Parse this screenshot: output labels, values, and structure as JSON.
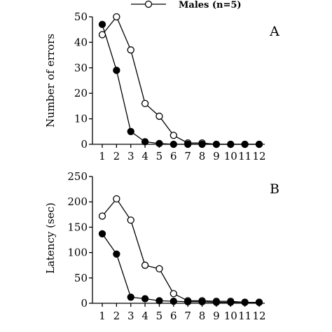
{
  "legend": {
    "items": [
      {
        "name": "Males (n=5)",
        "marker": "open-circle"
      }
    ]
  },
  "colors": {
    "line": "#000000",
    "open_fill": "#ffffff",
    "filled_fill": "#000000"
  },
  "chart_data": [
    {
      "type": "line",
      "panel_label": "A",
      "ylabel": "Number of errors",
      "xlabel": "",
      "x": [
        1,
        2,
        3,
        4,
        5,
        6,
        7,
        8,
        9,
        10,
        11,
        12
      ],
      "xticks": [
        "1",
        "2",
        "3",
        "4",
        "5",
        "6",
        "7",
        "8",
        "9",
        "10",
        "11",
        "12"
      ],
      "ylim": [
        0,
        50
      ],
      "yticks": [
        0,
        10,
        20,
        30,
        40,
        50
      ],
      "series": [
        {
          "name": "",
          "marker": "filled-circle",
          "values": [
            47,
            29,
            5,
            1,
            0.3,
            0,
            0,
            0,
            0,
            0,
            0,
            0
          ]
        },
        {
          "name": "Males (n=5)",
          "marker": "open-circle",
          "values": [
            43,
            50,
            37,
            16,
            11,
            3.5,
            0.5,
            0.5,
            0,
            0,
            0,
            0
          ]
        }
      ]
    },
    {
      "type": "line",
      "panel_label": "B",
      "ylabel": "Latency (sec)",
      "xlabel": "",
      "x": [
        1,
        2,
        3,
        4,
        5,
        6,
        7,
        8,
        9,
        10,
        11,
        12
      ],
      "xticks": [
        "1",
        "2",
        "3",
        "4",
        "5",
        "6",
        "7",
        "8",
        "9",
        "10",
        "11",
        "12"
      ],
      "ylim": [
        0,
        250
      ],
      "yticks": [
        0,
        50,
        100,
        150,
        200,
        250
      ],
      "series": [
        {
          "name": "",
          "marker": "filled-circle",
          "values": [
            137,
            97,
            12,
            9,
            5,
            4,
            3,
            3,
            2,
            2,
            2,
            2
          ]
        },
        {
          "name": "Males (n=5)",
          "marker": "open-circle",
          "values": [
            172,
            206,
            164,
            75,
            68,
            19,
            5,
            5,
            4,
            4,
            2,
            2
          ]
        }
      ]
    }
  ]
}
